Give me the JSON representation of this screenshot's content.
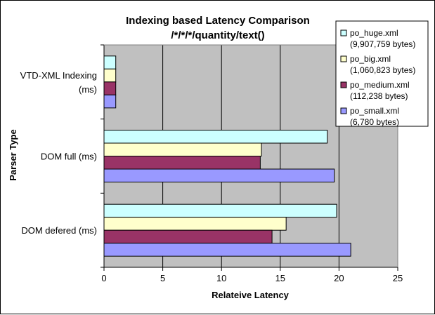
{
  "chart_data": {
    "type": "bar",
    "orientation": "horizontal",
    "title": "Indexing based Latency Comparison",
    "subtitle": "/*/*/*/quantity/text()",
    "xlabel": "Relateive Latency",
    "ylabel": "Parser Type",
    "xlim": [
      0,
      25
    ],
    "xticks": [
      0,
      5,
      10,
      15,
      20,
      25
    ],
    "grid": "vertical",
    "legend_position": "top-right",
    "plot_background": "#c0c0c0",
    "categories": [
      [
        "VTD-XML Indexing",
        "(ms)"
      ],
      [
        "DOM full (ms)"
      ],
      [
        "DOM defered (ms)"
      ]
    ],
    "series": [
      {
        "name": "po_huge.xml",
        "detail": "(9,907,759 bytes)",
        "color": "#ccffff",
        "values": [
          1,
          19.0,
          19.8
        ]
      },
      {
        "name": "po_big.xml",
        "detail": "(1,060,823 bytes)",
        "color": "#ffffcc",
        "values": [
          1,
          13.4,
          15.5
        ]
      },
      {
        "name": "po_medium.xml",
        "detail": "(112,238 bytes)",
        "color": "#993366",
        "values": [
          1,
          13.3,
          14.3
        ]
      },
      {
        "name": "po_small.xml",
        "detail": "(6,780 bytes)",
        "color": "#9999ff",
        "values": [
          1,
          19.6,
          21.0
        ]
      }
    ]
  }
}
